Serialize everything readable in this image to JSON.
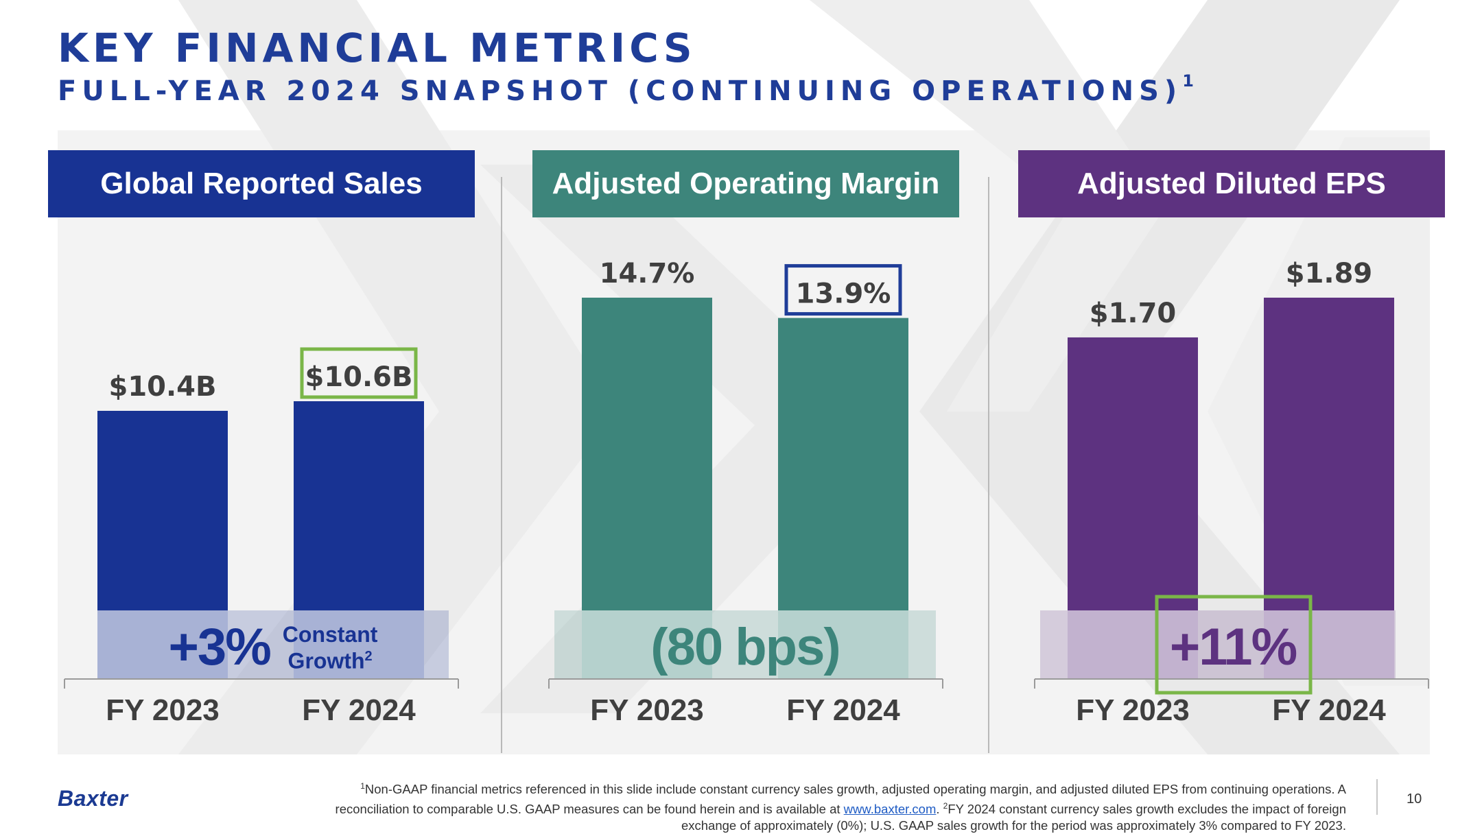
{
  "slide": {
    "title": "KEY FINANCIAL METRICS",
    "subtitle": "FULL-YEAR 2024 SNAPSHOT (CONTINUING OPERATIONS)",
    "subtitle_marker": "1"
  },
  "colors": {
    "title": "#1f3d98",
    "sales": "#183393",
    "margin": "#3d857b",
    "eps": "#5d3280",
    "highlight_green": "#7ab648",
    "highlight_blue": "#1f3d98",
    "axis_text": "#3f3f3f"
  },
  "chart_data": [
    {
      "type": "bar",
      "title": "Global Reported Sales",
      "categories": [
        "FY 2023",
        "FY 2024"
      ],
      "values": [
        10.4,
        10.6
      ],
      "data_labels": [
        "$10.4B",
        "$10.6B"
      ],
      "highlighted_label": "FY 2024",
      "highlight_color": "#7ab648",
      "annotation": {
        "value": "+3%",
        "note_line1": "Constant",
        "note_line2": "Growth",
        "note_marker": "2"
      },
      "color": "#183393",
      "grid": false
    },
    {
      "type": "bar",
      "title": "Adjusted Operating Margin",
      "categories": [
        "FY 2023",
        "FY 2024"
      ],
      "values": [
        14.7,
        13.9
      ],
      "data_labels": [
        "14.7%",
        "13.9%"
      ],
      "highlighted_label": "FY 2024",
      "highlight_color": "#1f3d98",
      "annotation": {
        "value": "(80 bps)"
      },
      "color": "#3d857b",
      "grid": false
    },
    {
      "type": "bar",
      "title": "Adjusted Diluted EPS",
      "categories": [
        "FY 2023",
        "FY 2024"
      ],
      "values": [
        1.7,
        1.89
      ],
      "data_labels": [
        "$1.70",
        "$1.89"
      ],
      "highlighted_label": null,
      "annotation": {
        "value": "+11%",
        "boxed": true,
        "box_color": "#7ab648"
      },
      "color": "#5d3280",
      "grid": false
    }
  ],
  "footer": {
    "logo": "Baxter",
    "footnote_marker1": "1",
    "footnote_part1": "Non-GAAP financial metrics referenced in this slide include constant currency sales growth, adjusted operating margin, and adjusted diluted EPS from continuing operations. A reconciliation to comparable U.S. GAAP measures can be found herein and is available at ",
    "footnote_link": "www.baxter.com",
    "footnote_part2": ". ",
    "footnote_marker2": "2",
    "footnote_part3": "FY 2024 constant currency sales growth excludes the impact of foreign exchange of approximately (0%); U.S. GAAP sales growth for the period was approximately 3% compared to FY 2023.",
    "page_number": "10"
  }
}
